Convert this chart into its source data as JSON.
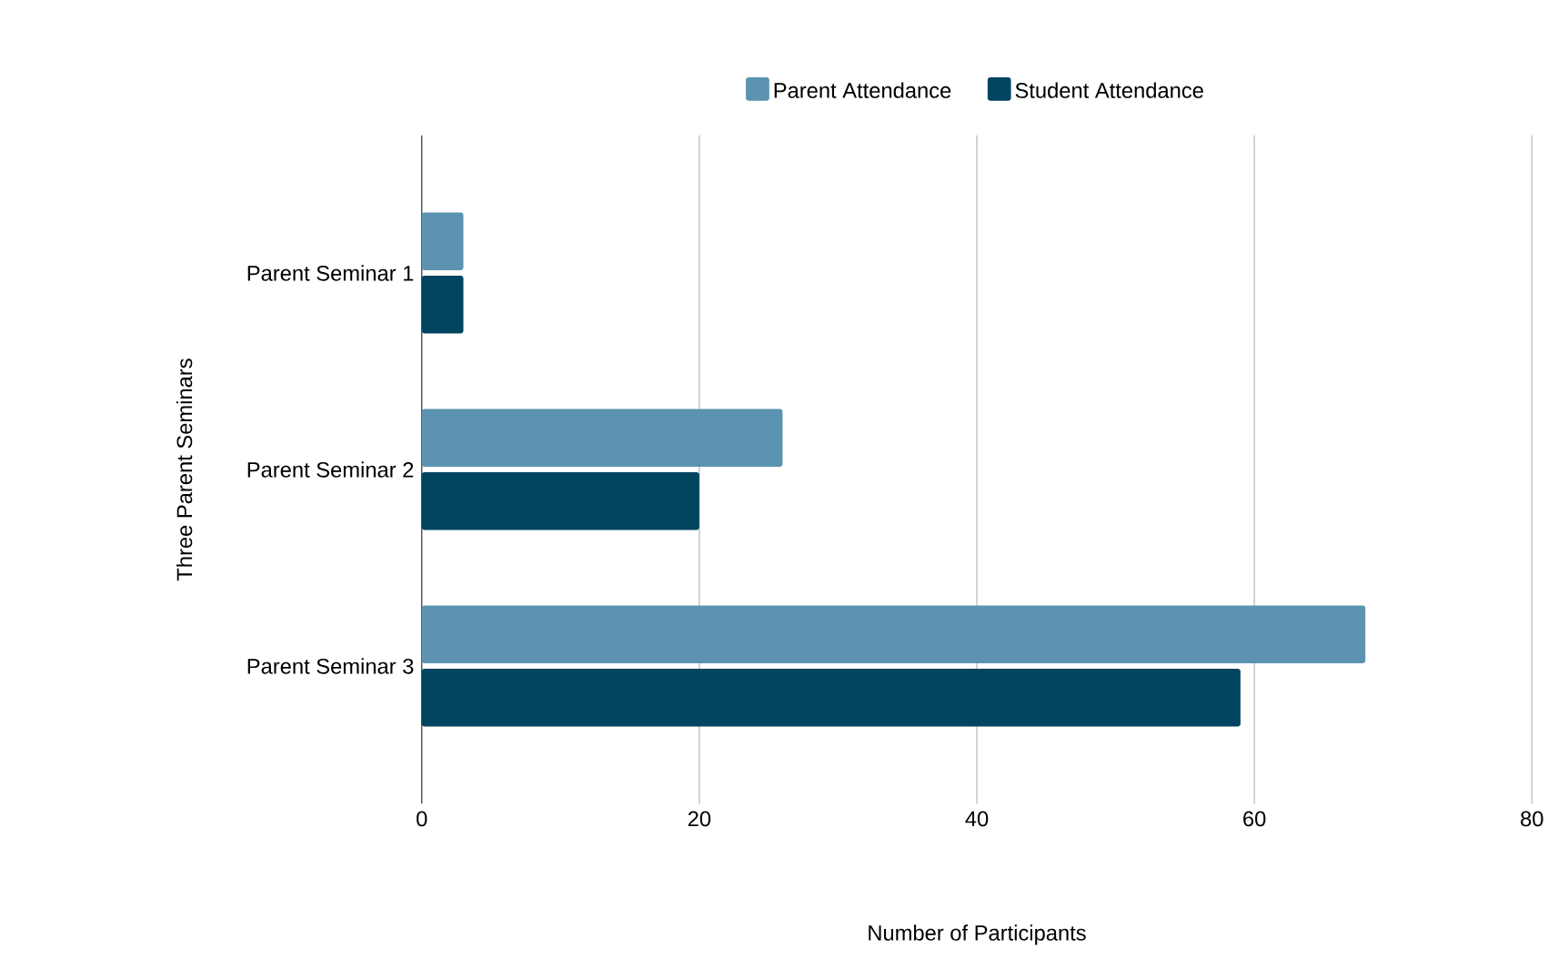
{
  "chart_data": {
    "type": "bar",
    "orientation": "horizontal",
    "xlabel": "Number of Participants",
    "ylabel": "Three Parent Seminars",
    "categories": [
      "Parent Seminar 1",
      "Parent Seminar 2",
      "Parent Seminar 3"
    ],
    "series": [
      {
        "name": "Parent Attendance",
        "color": "#5b93b0",
        "values": [
          3,
          26,
          68
        ]
      },
      {
        "name": "Student Attendance",
        "color": "#00445f",
        "values": [
          3,
          20,
          59
        ]
      }
    ],
    "xlim": [
      0,
      80
    ],
    "xticks": [
      0,
      20,
      40,
      60,
      80
    ],
    "grid": "x",
    "legend": "top"
  }
}
